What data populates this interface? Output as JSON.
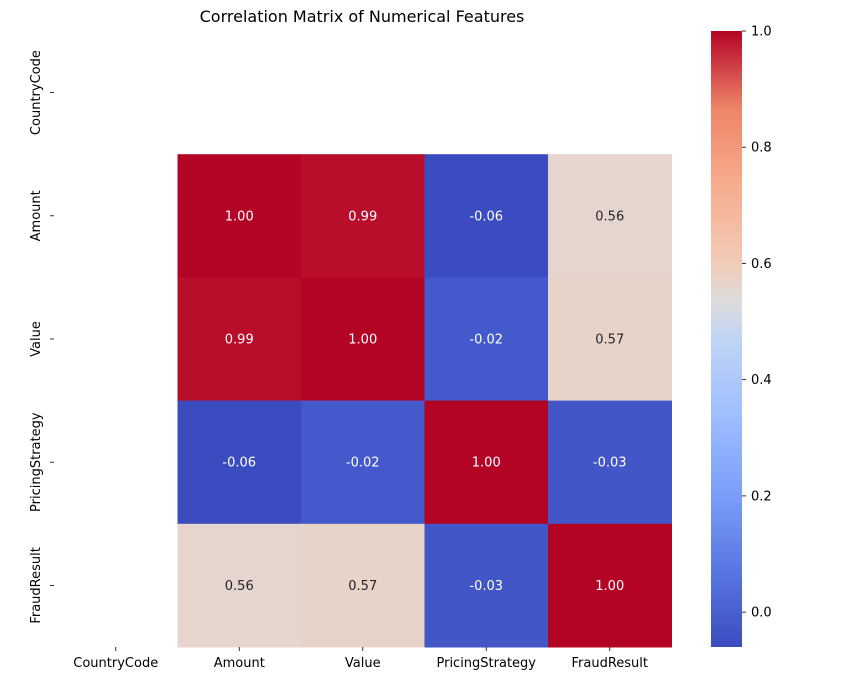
{
  "chart_data": {
    "type": "heatmap",
    "title": "Correlation Matrix of Numerical Features",
    "x_categories": [
      "CountryCode",
      "Amount",
      "Value",
      "PricingStrategy",
      "FraudResult"
    ],
    "y_categories": [
      "CountryCode",
      "Amount",
      "Value",
      "PricingStrategy",
      "FraudResult"
    ],
    "values": [
      [
        null,
        null,
        null,
        null,
        null
      ],
      [
        null,
        1.0,
        0.99,
        -0.06,
        0.56
      ],
      [
        null,
        0.99,
        1.0,
        -0.02,
        0.57
      ],
      [
        null,
        -0.06,
        -0.02,
        1.0,
        -0.03
      ],
      [
        null,
        0.56,
        0.57,
        -0.03,
        1.0
      ]
    ],
    "annotations": [
      [
        null,
        null,
        null,
        null,
        null
      ],
      [
        null,
        "1.00",
        "0.99",
        "-0.06",
        "0.56"
      ],
      [
        null,
        "0.99",
        "1.00",
        "-0.02",
        "0.57"
      ],
      [
        null,
        "-0.06",
        "-0.02",
        "1.00",
        "-0.03"
      ],
      [
        null,
        "0.56",
        "0.57",
        "-0.03",
        "1.00"
      ]
    ],
    "colormap": "coolwarm",
    "vmin": -0.06,
    "vmax": 1.0,
    "colorbar_ticks": [
      0.0,
      0.2,
      0.4,
      0.6,
      0.8,
      1.0
    ],
    "colorbar_tick_labels": [
      "0.0",
      "0.2",
      "0.4",
      "0.6",
      "0.8",
      "1.0"
    ],
    "grid": false
  }
}
